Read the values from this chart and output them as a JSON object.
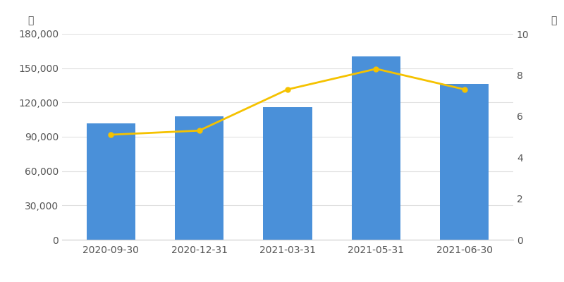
{
  "categories": [
    "2020-09-30",
    "2020-12-31",
    "2021-03-31",
    "2021-05-31",
    "2021-06-30"
  ],
  "bar_values": [
    102000,
    108000,
    116000,
    160000,
    136000
  ],
  "line_values": [
    5.1,
    5.3,
    7.3,
    8.3,
    7.3
  ],
  "bar_color": "#4a90d9",
  "line_color": "#f5c200",
  "left_ylabel": "户",
  "right_ylabel": "元",
  "left_ylim": [
    0,
    180000
  ],
  "left_yticks": [
    0,
    30000,
    60000,
    90000,
    120000,
    150000,
    180000
  ],
  "right_ylim": [
    0,
    10
  ],
  "right_yticks": [
    0,
    2,
    4,
    6,
    8,
    10
  ],
  "bg_color": "#ffffff",
  "tick_fontsize": 10,
  "bar_width": 0.55
}
